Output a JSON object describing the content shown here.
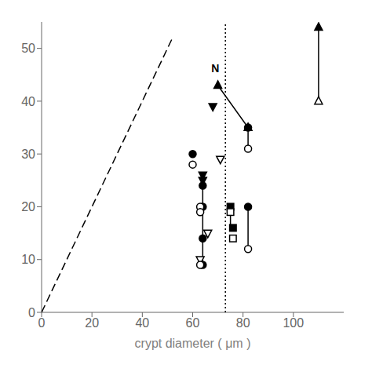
{
  "chart_data": {
    "type": "scatter",
    "xlabel": "crypt diameter  ( μm )",
    "xlim": [
      0,
      120
    ],
    "ylim": [
      0,
      55
    ],
    "xticks": [
      0,
      20,
      40,
      60,
      80,
      100
    ],
    "yticks": [
      0,
      10,
      20,
      30,
      40,
      50
    ],
    "grid": false,
    "annotations": [
      {
        "text": "N",
        "x": 69,
        "y": 45.5
      }
    ],
    "series": [
      {
        "type": "line",
        "line_style": "dashed",
        "color": "#000000",
        "x": [
          0,
          52
        ],
        "values": [
          0,
          52
        ]
      },
      {
        "type": "line",
        "line_style": "dotted",
        "color": "#000000",
        "x": [
          73,
          73
        ],
        "values": [
          0,
          55
        ]
      },
      {
        "type": "line",
        "line_style": "solid",
        "color": "#000000",
        "x": [
          110,
          110,
          null,
          70,
          82,
          82,
          null,
          64,
          64,
          64,
          64,
          null,
          75,
          75,
          null,
          82,
          82
        ],
        "values": [
          40,
          54,
          null,
          43,
          35,
          31,
          null,
          9,
          14,
          20,
          24,
          null,
          16,
          20,
          null,
          12,
          20
        ]
      },
      {
        "type": "scatter",
        "marker": "triangle-up",
        "color": "#000000",
        "x": [
          70,
          110
        ],
        "values": [
          43,
          54
        ]
      },
      {
        "type": "scatter",
        "marker": "triangle-up-open",
        "color": "#000000",
        "x": [
          82,
          110
        ],
        "values": [
          35,
          40
        ]
      },
      {
        "type": "scatter",
        "marker": "triangle-down",
        "color": "#000000",
        "x": [
          68,
          64,
          64
        ],
        "values": [
          39,
          26,
          25
        ]
      },
      {
        "type": "scatter",
        "marker": "triangle-down-open",
        "color": "#000000",
        "x": [
          71,
          66,
          63
        ],
        "values": [
          29,
          15,
          10
        ]
      },
      {
        "type": "scatter",
        "marker": "circle",
        "color": "#000000",
        "x": [
          60,
          64,
          64,
          64,
          82,
          82,
          64
        ],
        "values": [
          30,
          24,
          20,
          14,
          20,
          35,
          9
        ]
      },
      {
        "type": "scatter",
        "marker": "circle-open",
        "color": "#000000",
        "x": [
          60,
          63,
          63,
          63,
          82,
          82
        ],
        "values": [
          28,
          20,
          19,
          9,
          31,
          12
        ]
      },
      {
        "type": "scatter",
        "marker": "square",
        "color": "#000000",
        "x": [
          75,
          76
        ],
        "values": [
          20,
          16
        ]
      },
      {
        "type": "scatter",
        "marker": "square-open",
        "color": "#000000",
        "x": [
          75,
          76
        ],
        "values": [
          19,
          14
        ]
      }
    ]
  }
}
